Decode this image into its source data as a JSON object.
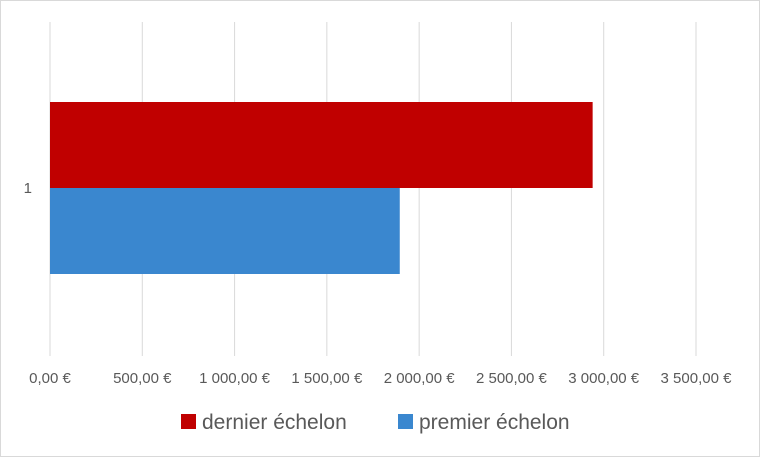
{
  "chart_data": {
    "type": "bar",
    "orientation": "horizontal",
    "categories": [
      "1"
    ],
    "series": [
      {
        "name": "dernier échelon",
        "values": [
          2940
        ],
        "color": "#c00000"
      },
      {
        "name": "premier échelon",
        "values": [
          1895
        ],
        "color": "#3a87cf"
      }
    ],
    "title": "",
    "xlabel": "",
    "ylabel": "",
    "xlim": [
      0,
      3500
    ],
    "x_ticks": [
      0,
      500,
      1000,
      1500,
      2000,
      2500,
      3000,
      3500
    ],
    "x_tick_labels": [
      "0,00 €",
      "500,00 €",
      "1 000,00 €",
      "1 500,00 €",
      "2 000,00 €",
      "2 500,00 €",
      "3 000,00 €",
      "3 500,00 €"
    ],
    "grid": true,
    "legend_position": "bottom",
    "legend_entries": [
      "dernier échelon",
      "premier échelon"
    ]
  }
}
